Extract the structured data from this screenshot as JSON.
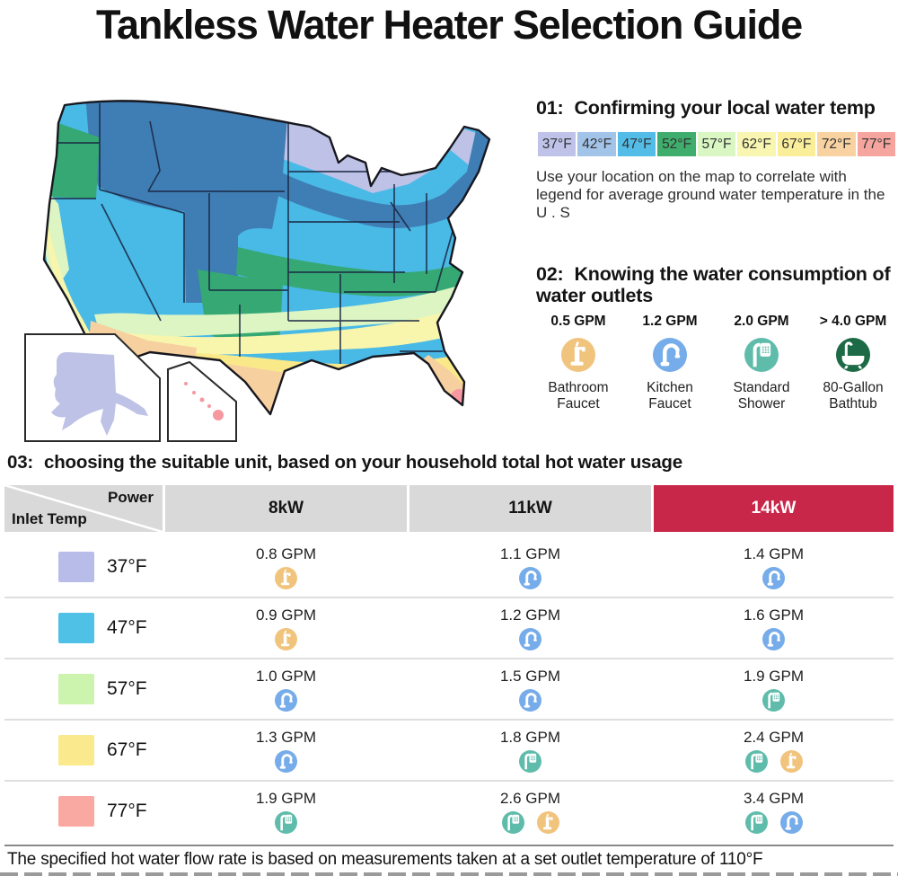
{
  "title": "Tankless Water Heater Selection Guide",
  "step1": {
    "number": "01:",
    "heading": "Confirming your local water temp",
    "description": "Use your location on the map to correlate with legend for average ground water temperature in the U . S",
    "legend": [
      {
        "label": "37°F",
        "color": "#bfc3ea"
      },
      {
        "label": "42°F",
        "color": "#a3c4e9"
      },
      {
        "label": "47°F",
        "color": "#53bce7"
      },
      {
        "label": "52°F",
        "color": "#3fae6c"
      },
      {
        "label": "57°F",
        "color": "#d9f6c3"
      },
      {
        "label": "62°F",
        "color": "#f8f6b0"
      },
      {
        "label": "67°F",
        "color": "#fbee9b"
      },
      {
        "label": "72°F",
        "color": "#f8d3a1"
      },
      {
        "label": "77°F",
        "color": "#f5a59e"
      }
    ]
  },
  "step2": {
    "number": "02:",
    "heading": "Knowing the water consumption of water outlets",
    "outlets": [
      {
        "gpm": "0.5 GPM",
        "name": "Bathroom Faucet",
        "icon": "bathroom-faucet"
      },
      {
        "gpm": "1.2 GPM",
        "name": "Kitchen Faucet",
        "icon": "kitchen-faucet"
      },
      {
        "gpm": "2.0 GPM",
        "name": "Standard Shower",
        "icon": "shower"
      },
      {
        "gpm": "> 4.0 GPM",
        "name": "80-Gallon Bathtub",
        "icon": "bathtub"
      }
    ]
  },
  "step3": {
    "number": "03:",
    "heading": "choosing the suitable unit, based on your household total hot water usage"
  },
  "icon_colors": {
    "bathroom-faucet": "#f1c47d",
    "kitchen-faucet": "#76ace9",
    "shower": "#5fbcab",
    "bathtub": "#1d6b46"
  },
  "table": {
    "corner_top": "Power",
    "corner_bottom": "Inlet Temp",
    "highlight_color": "#c9274a",
    "columns": [
      {
        "label": "8kW",
        "highlight": false
      },
      {
        "label": "11kW",
        "highlight": false
      },
      {
        "label": "14kW",
        "highlight": true
      }
    ],
    "rows": [
      {
        "temp": "37°F",
        "swatch": "#b7bce9",
        "cells": [
          {
            "value": "0.8 GPM",
            "icons": [
              "bathroom-faucet"
            ]
          },
          {
            "value": "1.1 GPM",
            "icons": [
              "kitchen-faucet"
            ]
          },
          {
            "value": "1.4 GPM",
            "icons": [
              "kitchen-faucet"
            ]
          }
        ]
      },
      {
        "temp": "47°F",
        "swatch": "#4fc0e6",
        "cells": [
          {
            "value": "0.9 GPM",
            "icons": [
              "bathroom-faucet"
            ]
          },
          {
            "value": "1.2 GPM",
            "icons": [
              "kitchen-faucet"
            ]
          },
          {
            "value": "1.6 GPM",
            "icons": [
              "kitchen-faucet"
            ]
          }
        ]
      },
      {
        "temp": "57°F",
        "swatch": "#cdf4ae",
        "cells": [
          {
            "value": "1.0 GPM",
            "icons": [
              "kitchen-faucet"
            ]
          },
          {
            "value": "1.5 GPM",
            "icons": [
              "kitchen-faucet"
            ]
          },
          {
            "value": "1.9 GPM",
            "icons": [
              "shower"
            ]
          }
        ]
      },
      {
        "temp": "67°F",
        "swatch": "#fae98d",
        "cells": [
          {
            "value": "1.3 GPM",
            "icons": [
              "kitchen-faucet"
            ]
          },
          {
            "value": "1.8 GPM",
            "icons": [
              "shower"
            ]
          },
          {
            "value": "2.4 GPM",
            "icons": [
              "shower",
              "bathroom-faucet"
            ]
          }
        ]
      },
      {
        "temp": "77°F",
        "swatch": "#f9a9a2",
        "cells": [
          {
            "value": "1.9 GPM",
            "icons": [
              "shower"
            ]
          },
          {
            "value": "2.6 GPM",
            "icons": [
              "shower",
              "bathroom-faucet"
            ]
          },
          {
            "value": "3.4 GPM",
            "icons": [
              "shower",
              "kitchen-faucet"
            ]
          }
        ]
      }
    ]
  },
  "footer": "The specified hot water flow rate is based on measurements taken at a set outlet temperature of 110°F"
}
